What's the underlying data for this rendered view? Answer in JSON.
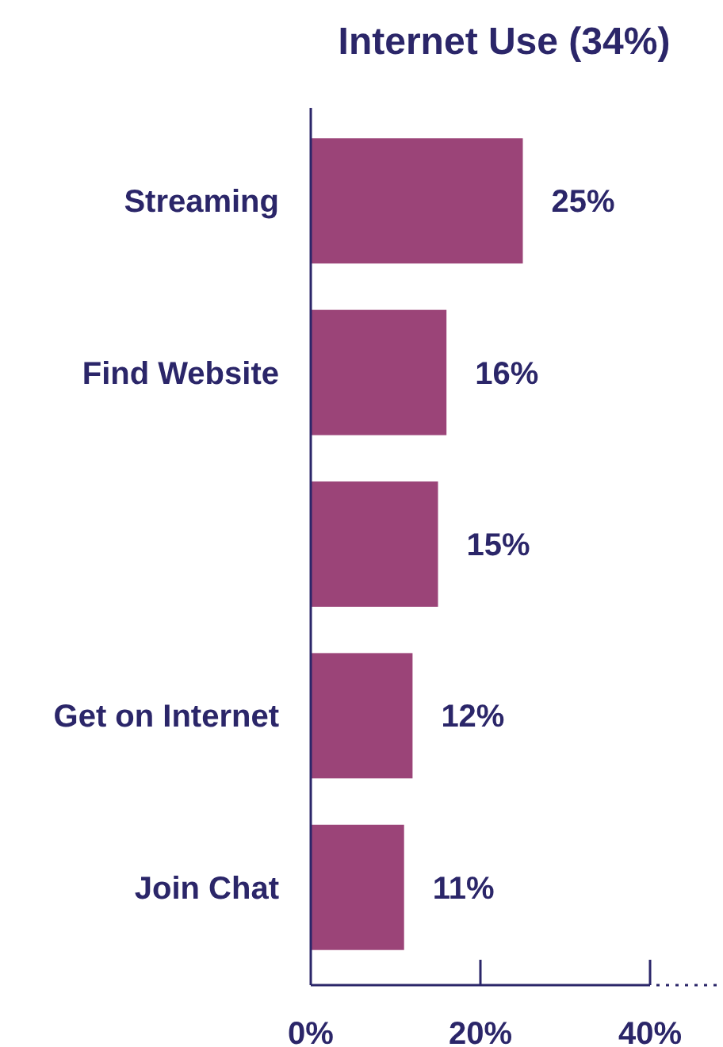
{
  "chart_data": {
    "type": "bar",
    "orientation": "horizontal",
    "title": "Internet Use (34%)",
    "categories": [
      "Streaming",
      "Find Website",
      null,
      "Get on Internet",
      "Join Chat"
    ],
    "values": [
      25,
      16,
      15,
      12,
      11
    ],
    "color": "#9b4478",
    "xlim": [
      0,
      40
    ],
    "xticks": [
      {
        "value": 0,
        "label": "0%"
      },
      {
        "value": 20,
        "label": "20%"
      },
      {
        "value": 40,
        "label": "40%"
      }
    ],
    "value_labels": [
      "25%",
      "16%",
      "15%",
      "12%",
      "11%"
    ],
    "grid": false
  }
}
